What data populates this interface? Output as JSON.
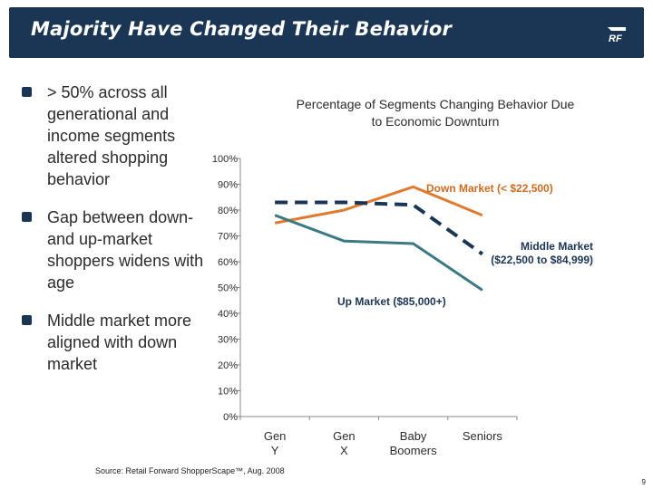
{
  "header": {
    "title": "Majority Have Changed Their Behavior",
    "logo_text": "RF"
  },
  "bullets": [
    "> 50% across all generational and income segments altered shopping behavior",
    "Gap between down- and up-market shoppers widens with age",
    "Middle market more aligned with down market"
  ],
  "colors": {
    "header_bg": "#1a3654",
    "down_market": "#e07a2e",
    "middle_market": "#1a3654",
    "up_market": "#3a7a80"
  },
  "chart_data": {
    "type": "line",
    "title": "Percentage of Segments Changing Behavior Due to Economic Downturn",
    "categories": [
      "Gen Y",
      "Gen X",
      "Baby Boomers",
      "Seniors"
    ],
    "ylim": [
      0,
      100
    ],
    "yticks": [
      "0%",
      "10%",
      "20%",
      "30%",
      "40%",
      "50%",
      "60%",
      "70%",
      "80%",
      "90%",
      "100%"
    ],
    "series": [
      {
        "name": "Down Market (< $22,500)",
        "values": [
          75,
          80,
          89,
          78
        ],
        "color": "#e07a2e",
        "dash": false
      },
      {
        "name": "Middle Market ($22,500 to $84,999)",
        "values": [
          83,
          83,
          82,
          63
        ],
        "color": "#1a3654",
        "dash": true
      },
      {
        "name": "Up Market ($85,000+)",
        "values": [
          78,
          68,
          67,
          49
        ],
        "color": "#3a7a80",
        "dash": false
      }
    ]
  },
  "footer": {
    "source": "Source: Retail Forward ShopperScape™, Aug. 2008",
    "page_number": "9"
  }
}
